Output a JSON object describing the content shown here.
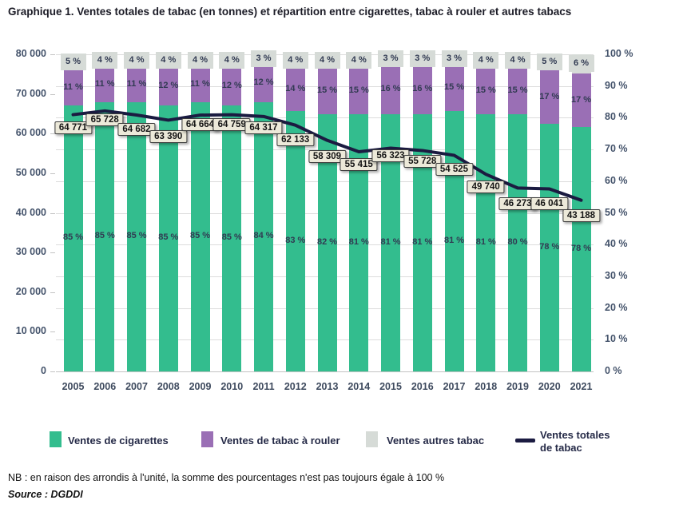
{
  "title": "Graphique 1. Ventes totales de tabac (en tonnes) et répartition entre cigarettes, tabac à rouler et autres tabacs",
  "note": "NB : en raison des arrondis à l'unité, la somme des pourcentages n'est pas toujours égale à 100 %",
  "source": "Source : DGDDI",
  "legend": [
    {
      "label": "Ventes de cigarettes",
      "color": "#33bd8e",
      "type": "swatch"
    },
    {
      "label": "Ventes de tabac à rouler",
      "color": "#9a6fb5",
      "type": "swatch"
    },
    {
      "label": "Ventes autres tabac",
      "color": "#d6dbd7",
      "type": "swatch"
    },
    {
      "label": "Ventes totales de tabac",
      "color": "#1b1b41",
      "type": "line"
    }
  ],
  "chart_data": {
    "type": "bar",
    "subtype": "stacked-percent-bars-with-line",
    "categories": [
      "2005",
      "2006",
      "2007",
      "2008",
      "2009",
      "2010",
      "2011",
      "2012",
      "2013",
      "2014",
      "2015",
      "2016",
      "2017",
      "2018",
      "2019",
      "2020",
      "2021"
    ],
    "series": [
      {
        "name": "Ventes de cigarettes",
        "color": "#33bd8e",
        "unit": "%",
        "values": [
          85,
          85,
          85,
          85,
          85,
          85,
          84,
          83,
          82,
          81,
          81,
          81,
          81,
          81,
          80,
          78,
          78
        ]
      },
      {
        "name": "Ventes de tabac à rouler",
        "color": "#9a6fb5",
        "unit": "%",
        "values": [
          11,
          11,
          11,
          12,
          11,
          12,
          12,
          14,
          15,
          15,
          16,
          16,
          15,
          15,
          15,
          17,
          17
        ]
      },
      {
        "name": "Ventes autres tabac",
        "color": "#d6dbd7",
        "unit": "%",
        "values": [
          5,
          4,
          4,
          4,
          4,
          4,
          3,
          4,
          4,
          4,
          3,
          3,
          3,
          4,
          4,
          5,
          6
        ]
      }
    ],
    "line": {
      "name": "Ventes totales de tabac",
      "color": "#1b1b41",
      "unit": "tonnes",
      "values": [
        64771,
        65728,
        64682,
        63390,
        64664,
        64759,
        64317,
        62133,
        58309,
        55415,
        56323,
        55728,
        54525,
        49740,
        46273,
        46041,
        43188
      ],
      "labels": [
        "64 771",
        "65 728",
        "64 682",
        "63 390",
        "64 664",
        "64 759",
        "64 317",
        "62 133",
        "58 309",
        "55 415",
        "56 323",
        "55 728",
        "54 525",
        "49 740",
        "46 273",
        "46 041",
        "43 188"
      ]
    },
    "left_axis": {
      "label_unit": "tonnes",
      "min": 0,
      "max": 80000,
      "ticks": [
        "80 000",
        "70 000",
        "60 000",
        "50 000",
        "40 000",
        "30 000",
        "20 000",
        "10 000",
        "0"
      ]
    },
    "right_axis": {
      "label_unit": "%",
      "min": 0,
      "max": 100,
      "ticks": [
        "100 %",
        "90 %",
        "80 %",
        "70 %",
        "60 %",
        "50 %",
        "40 %",
        "30 %",
        "20 %",
        "10 %",
        "0 %"
      ]
    },
    "grid": true,
    "legend_position": "bottom",
    "label_box_style": {
      "background": "#ece9d9",
      "border": "#3c3c3c"
    }
  }
}
